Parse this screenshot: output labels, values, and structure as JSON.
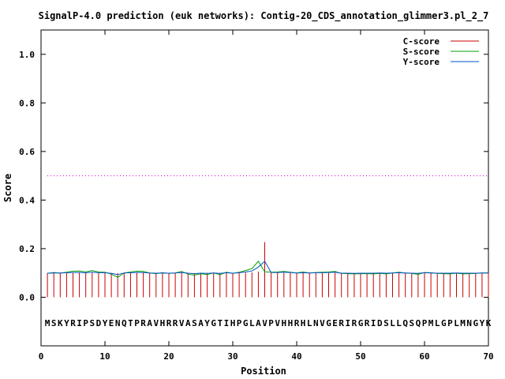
{
  "chart_data": {
    "type": "line",
    "title": "SignalP-4.0 prediction (euk networks): Contig-20_CDS_annotation_glimmer3.pl_2_7",
    "xlabel": "Position",
    "ylabel": "Score",
    "xlim": [
      0,
      70
    ],
    "ylim": [
      -0.2,
      1.1
    ],
    "xticks": [
      0,
      10,
      20,
      30,
      40,
      50,
      60,
      70
    ],
    "yticks": [
      0.0,
      0.2,
      0.4,
      0.6,
      0.8,
      1.0
    ],
    "xtick_labels": [
      "0",
      "10",
      "20",
      "30",
      "40",
      "50",
      "60",
      "70"
    ],
    "ytick_labels": [
      "0.0",
      "0.2",
      "0.4",
      "0.6",
      "0.8",
      "1.0"
    ],
    "grid": false,
    "legend_position": "top-right",
    "threshold": {
      "value": 0.5,
      "color": "#cc00cc",
      "style": "dotted"
    },
    "sequence": "MSKYRIPSDYENQTPRAVHRRVASAYGTIHPGLAVPVHHRHLNVGERIRGRIDSLLQSQPMLGPLMNGYK",
    "sequence_y": -0.105,
    "series": [
      {
        "name": "C-score",
        "color": "#cc0000",
        "style": "impulses",
        "x": [
          1,
          2,
          3,
          4,
          5,
          6,
          7,
          8,
          9,
          10,
          11,
          12,
          13,
          14,
          15,
          16,
          17,
          18,
          19,
          20,
          21,
          22,
          23,
          24,
          25,
          26,
          27,
          28,
          29,
          30,
          31,
          32,
          33,
          34,
          35,
          36,
          37,
          38,
          39,
          40,
          41,
          42,
          43,
          44,
          45,
          46,
          47,
          48,
          49,
          50,
          51,
          52,
          53,
          54,
          55,
          56,
          57,
          58,
          59,
          60,
          61,
          62,
          63,
          64,
          65,
          66,
          67,
          68,
          69,
          70
        ],
        "values": [
          0.1,
          0.1,
          0.101,
          0.099,
          0.1,
          0.101,
          0.1,
          0.1,
          0.099,
          0.1,
          0.1,
          0.099,
          0.101,
          0.1,
          0.1,
          0.101,
          0.1,
          0.1,
          0.1,
          0.1,
          0.1,
          0.101,
          0.1,
          0.099,
          0.1,
          0.1,
          0.101,
          0.1,
          0.1,
          0.1,
          0.1,
          0.101,
          0.102,
          0.105,
          0.227,
          0.1,
          0.101,
          0.1,
          0.1,
          0.1,
          0.1,
          0.1,
          0.1,
          0.1,
          0.1,
          0.101,
          0.1,
          0.1,
          0.1,
          0.1,
          0.1,
          0.101,
          0.1,
          0.1,
          0.1,
          0.1,
          0.1,
          0.1,
          0.1,
          0.101,
          0.1,
          0.1,
          0.1,
          0.1,
          0.1,
          0.1,
          0.1,
          0.1,
          0.1,
          0.1
        ]
      },
      {
        "name": "S-score",
        "color": "#00a000",
        "style": "line",
        "x": [
          1,
          2,
          3,
          4,
          5,
          6,
          7,
          8,
          9,
          10,
          11,
          12,
          13,
          14,
          15,
          16,
          17,
          18,
          19,
          20,
          21,
          22,
          23,
          24,
          25,
          26,
          27,
          28,
          29,
          30,
          31,
          32,
          33,
          34,
          35,
          36,
          37,
          38,
          39,
          40,
          41,
          42,
          43,
          44,
          45,
          46,
          47,
          48,
          49,
          50,
          51,
          52,
          53,
          54,
          55,
          56,
          57,
          58,
          59,
          60,
          61,
          62,
          63,
          64,
          65,
          66,
          67,
          68,
          69,
          70
        ],
        "values": [
          0.098,
          0.102,
          0.099,
          0.103,
          0.107,
          0.108,
          0.104,
          0.11,
          0.104,
          0.103,
          0.095,
          0.082,
          0.1,
          0.104,
          0.107,
          0.106,
          0.1,
          0.097,
          0.101,
          0.098,
          0.1,
          0.106,
          0.095,
          0.091,
          0.097,
          0.093,
          0.1,
          0.093,
          0.103,
          0.098,
          0.103,
          0.11,
          0.118,
          0.148,
          0.105,
          0.103,
          0.104,
          0.106,
          0.103,
          0.1,
          0.104,
          0.1,
          0.102,
          0.103,
          0.104,
          0.106,
          0.098,
          0.097,
          0.096,
          0.097,
          0.097,
          0.096,
          0.098,
          0.096,
          0.1,
          0.103,
          0.1,
          0.098,
          0.094,
          0.102,
          0.101,
          0.098,
          0.097,
          0.096,
          0.099,
          0.096,
          0.097,
          0.098,
          0.1,
          0.1
        ]
      },
      {
        "name": "Y-score",
        "color": "#0050c8",
        "style": "line",
        "x": [
          1,
          2,
          3,
          4,
          5,
          6,
          7,
          8,
          9,
          10,
          11,
          12,
          13,
          14,
          15,
          16,
          17,
          18,
          19,
          20,
          21,
          22,
          23,
          24,
          25,
          26,
          27,
          28,
          29,
          30,
          31,
          32,
          33,
          34,
          35,
          36,
          37,
          38,
          39,
          40,
          41,
          42,
          43,
          44,
          45,
          46,
          47,
          48,
          49,
          50,
          51,
          52,
          53,
          54,
          55,
          56,
          57,
          58,
          59,
          60,
          61,
          62,
          63,
          64,
          65,
          66,
          67,
          68,
          69,
          70
        ],
        "values": [
          0.099,
          0.1,
          0.1,
          0.101,
          0.102,
          0.102,
          0.101,
          0.103,
          0.101,
          0.101,
          0.098,
          0.093,
          0.1,
          0.101,
          0.102,
          0.102,
          0.1,
          0.099,
          0.1,
          0.099,
          0.1,
          0.102,
          0.099,
          0.097,
          0.099,
          0.098,
          0.1,
          0.098,
          0.101,
          0.099,
          0.101,
          0.104,
          0.108,
          0.124,
          0.148,
          0.102,
          0.102,
          0.103,
          0.102,
          0.1,
          0.101,
          0.1,
          0.101,
          0.101,
          0.102,
          0.103,
          0.099,
          0.099,
          0.098,
          0.099,
          0.099,
          0.099,
          0.1,
          0.099,
          0.1,
          0.101,
          0.1,
          0.099,
          0.098,
          0.101,
          0.1,
          0.099,
          0.099,
          0.099,
          0.1,
          0.099,
          0.099,
          0.099,
          0.1,
          0.1
        ]
      }
    ]
  }
}
